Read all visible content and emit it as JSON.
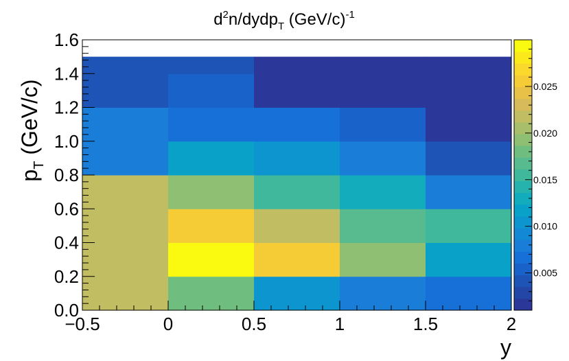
{
  "chart_data": {
    "type": "heatmap",
    "title": "d²n/dydp_T (GeV/c)⁻¹",
    "title_parts": {
      "base": "d",
      "sup1": "2",
      "mid": "n/dydp",
      "sub": "T",
      "rest": " (GeV/c)",
      "sup2": "-1"
    },
    "xlabel": "y",
    "ylabel_parts": {
      "base": "p",
      "sub": "T",
      "rest": " (GeV/c)"
    },
    "xlim": [
      -0.5,
      2.0
    ],
    "ylim": [
      0.0,
      1.6
    ],
    "zlim": [
      0.001,
      0.03
    ],
    "x_ticks": [
      {
        "value": -0.5,
        "label": "−0.5"
      },
      {
        "value": 0.0,
        "label": "0"
      },
      {
        "value": 0.5,
        "label": "0.5"
      },
      {
        "value": 1.0,
        "label": "1"
      },
      {
        "value": 1.5,
        "label": "1.5"
      },
      {
        "value": 2.0,
        "label": "2"
      }
    ],
    "y_ticks": [
      {
        "value": 0.0,
        "label": "0.0"
      },
      {
        "value": 0.2,
        "label": "0.2"
      },
      {
        "value": 0.4,
        "label": "0.4"
      },
      {
        "value": 0.6,
        "label": "0.6"
      },
      {
        "value": 0.8,
        "label": "0.8"
      },
      {
        "value": 1.0,
        "label": "1.0"
      },
      {
        "value": 1.2,
        "label": "1.2"
      },
      {
        "value": 1.4,
        "label": "1.4"
      },
      {
        "value": 1.6,
        "label": "1.6"
      }
    ],
    "z_ticks": [
      {
        "value": 0.005,
        "label": "0.005"
      },
      {
        "value": 0.01,
        "label": "0.010"
      },
      {
        "value": 0.015,
        "label": "0.015"
      },
      {
        "value": 0.02,
        "label": "0.020"
      },
      {
        "value": 0.025,
        "label": "0.025"
      }
    ],
    "palette": [
      "#2b3799",
      "#2446a7",
      "#1e54b5",
      "#1962c9",
      "#1670d8",
      "#1a7ed8",
      "#1388d5",
      "#0d95d0",
      "#09a1c8",
      "#13acbd",
      "#26b3ae",
      "#3fb89c",
      "#57bb8f",
      "#70bd80",
      "#8ebf73",
      "#a8be6a",
      "#c1bd62",
      "#d7bb5a",
      "#e8c248",
      "#f6cc36",
      "#fbd82c",
      "#fbe91b",
      "#f9fa0f"
    ],
    "cells": [
      {
        "x0": -0.5,
        "x1": 0.0,
        "y0": 0.0,
        "y1": 0.8,
        "z": 0.0218
      },
      {
        "x0": -0.5,
        "x1": 0.0,
        "y0": 0.8,
        "y1": 1.2,
        "z": 0.008
      },
      {
        "x0": -0.5,
        "x1": 0.0,
        "y0": 1.2,
        "y1": 1.5,
        "z": 0.0046
      },
      {
        "x0": 0.0,
        "x1": 0.5,
        "y0": 0.0,
        "y1": 0.2,
        "z": 0.0182
      },
      {
        "x0": 0.0,
        "x1": 0.5,
        "y0": 0.2,
        "y1": 0.4,
        "z": 0.0295
      },
      {
        "x0": 0.0,
        "x1": 0.5,
        "y0": 0.4,
        "y1": 0.6,
        "z": 0.0262
      },
      {
        "x0": 0.0,
        "x1": 0.5,
        "y0": 0.6,
        "y1": 0.8,
        "z": 0.0193
      },
      {
        "x0": 0.0,
        "x1": 0.5,
        "y0": 0.8,
        "y1": 1.0,
        "z": 0.0112
      },
      {
        "x0": 0.0,
        "x1": 0.5,
        "y0": 1.0,
        "y1": 1.2,
        "z": 0.0063
      },
      {
        "x0": 0.0,
        "x1": 0.5,
        "y0": 1.2,
        "y1": 1.4,
        "z": 0.0058
      },
      {
        "x0": 0.0,
        "x1": 0.5,
        "y0": 1.4,
        "y1": 1.5,
        "z": 0.0046
      },
      {
        "x0": 0.5,
        "x1": 1.0,
        "y0": 0.0,
        "y1": 0.2,
        "z": 0.011
      },
      {
        "x0": 0.5,
        "x1": 1.0,
        "y0": 0.2,
        "y1": 0.4,
        "z": 0.026
      },
      {
        "x0": 0.5,
        "x1": 1.0,
        "y0": 0.4,
        "y1": 0.6,
        "z": 0.0218
      },
      {
        "x0": 0.5,
        "x1": 1.0,
        "y0": 0.6,
        "y1": 0.8,
        "z": 0.0155
      },
      {
        "x0": 0.5,
        "x1": 1.0,
        "y0": 0.8,
        "y1": 1.0,
        "z": 0.011
      },
      {
        "x0": 0.5,
        "x1": 1.0,
        "y0": 1.0,
        "y1": 1.2,
        "z": 0.0063
      },
      {
        "x0": 0.5,
        "x1": 1.0,
        "y0": 1.2,
        "y1": 1.5,
        "z": 0.002
      },
      {
        "x0": 1.0,
        "x1": 1.5,
        "y0": 0.0,
        "y1": 0.2,
        "z": 0.008
      },
      {
        "x0": 1.0,
        "x1": 1.5,
        "y0": 0.2,
        "y1": 0.4,
        "z": 0.0193
      },
      {
        "x0": 1.0,
        "x1": 1.5,
        "y0": 0.4,
        "y1": 0.6,
        "z": 0.0172
      },
      {
        "x0": 1.0,
        "x1": 1.5,
        "y0": 0.6,
        "y1": 0.8,
        "z": 0.013
      },
      {
        "x0": 1.0,
        "x1": 1.5,
        "y0": 0.8,
        "y1": 1.0,
        "z": 0.0078
      },
      {
        "x0": 1.0,
        "x1": 1.5,
        "y0": 1.0,
        "y1": 1.2,
        "z": 0.0058
      },
      {
        "x0": 1.0,
        "x1": 1.5,
        "y0": 1.2,
        "y1": 1.5,
        "z": 0.002
      },
      {
        "x0": 1.5,
        "x1": 2.0,
        "y0": 0.0,
        "y1": 0.2,
        "z": 0.0072
      },
      {
        "x0": 1.5,
        "x1": 2.0,
        "y0": 0.2,
        "y1": 0.4,
        "z": 0.0112
      },
      {
        "x0": 1.5,
        "x1": 2.0,
        "y0": 0.4,
        "y1": 0.6,
        "z": 0.0155
      },
      {
        "x0": 1.5,
        "x1": 2.0,
        "y0": 0.6,
        "y1": 0.8,
        "z": 0.0075
      },
      {
        "x0": 1.5,
        "x1": 2.0,
        "y0": 0.8,
        "y1": 1.0,
        "z": 0.0046
      },
      {
        "x0": 1.5,
        "x1": 2.0,
        "y0": 1.0,
        "y1": 1.5,
        "z": 0.002
      }
    ]
  }
}
